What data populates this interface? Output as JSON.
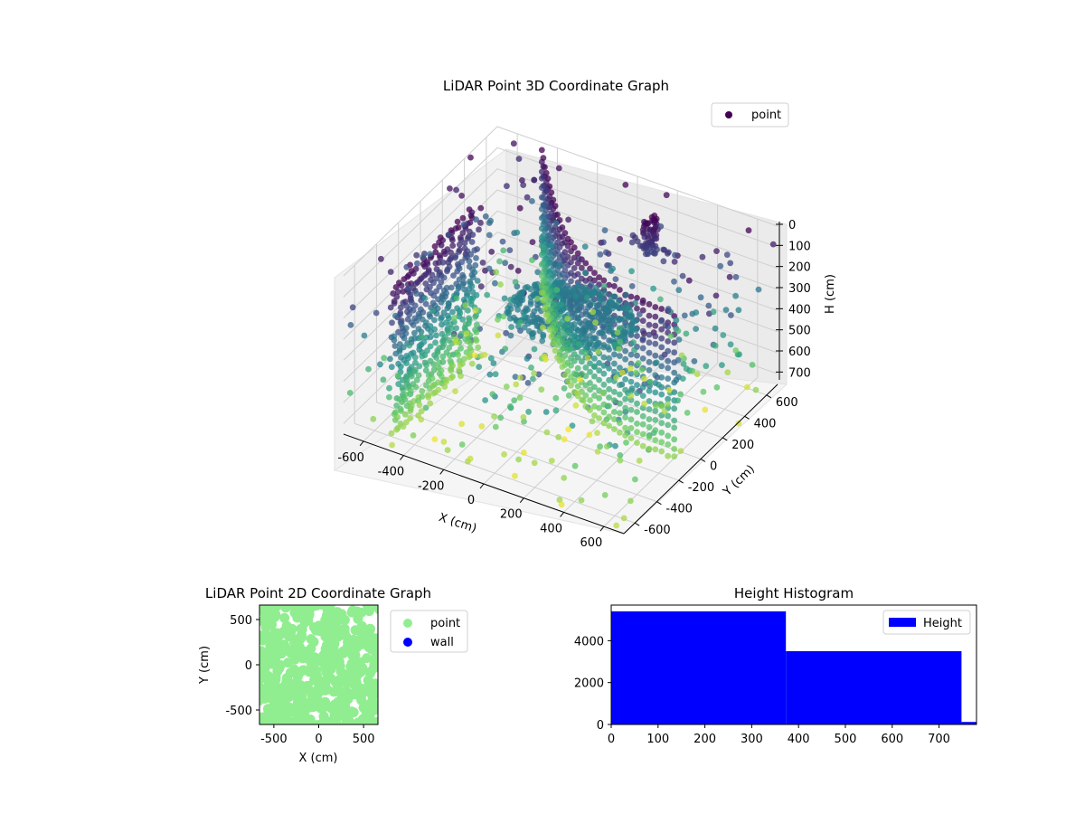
{
  "figure": {
    "background": "#ffffff"
  },
  "chart_data": [
    {
      "type": "scatter",
      "projection": "3d",
      "title": "LiDAR Point 3D Coordinate Graph",
      "xlabel": "X (cm)",
      "ylabel": "Y (cm)",
      "zlabel": "H (cm)",
      "xlim": [
        -700,
        700
      ],
      "ylim": [
        -700,
        700
      ],
      "zlim": [
        0,
        750
      ],
      "z_axis_inverted": true,
      "xticks": [
        "-600",
        "-400",
        "-200",
        "0",
        "200",
        "400",
        "600"
      ],
      "yticks": [
        "-600",
        "-400",
        "-200",
        "0",
        "200",
        "400",
        "600"
      ],
      "zticks": [
        "0",
        "100",
        "200",
        "300",
        "400",
        "500",
        "600",
        "700"
      ],
      "colormap": "viridis",
      "colormap_stops": [
        "#440154",
        "#3b528b",
        "#21918c",
        "#5ec962",
        "#fde725"
      ],
      "grid": true,
      "legend": {
        "position": "top-right",
        "entries": [
          "point"
        ],
        "marker_color": "#440154"
      },
      "series": [
        {
          "name": "point",
          "structures": [
            {
              "kind": "wall-arc",
              "x": [
                -450,
                650
              ],
              "y": [
                650,
                -150
              ],
              "h": [
                0,
                700
              ]
            },
            {
              "kind": "inner-wall",
              "x": [
                -500,
                -450
              ],
              "y": [
                -650,
                100
              ],
              "h": [
                0,
                700
              ]
            },
            {
              "kind": "dome",
              "center": [
                0,
                100
              ],
              "radius": 250,
              "h": 350
            },
            {
              "kind": "mast",
              "center": [
                200,
                450
              ],
              "h": [
                0,
                180
              ]
            },
            {
              "kind": "scatter-noise",
              "x": [
                -700,
                700
              ],
              "y": [
                -700,
                700
              ],
              "h": [
                0,
                800
              ]
            }
          ]
        }
      ]
    },
    {
      "type": "scatter",
      "title": "LiDAR Point 2D Coordinate Graph",
      "xlabel": "X (cm)",
      "ylabel": "Y (cm)",
      "xlim": [
        -660,
        660
      ],
      "ylim": [
        -660,
        660
      ],
      "xticks": [
        "-500",
        "0",
        "500"
      ],
      "yticks": [
        "-500",
        "0",
        "500"
      ],
      "legend": {
        "position": "outside-right",
        "entries": [
          {
            "label": "point",
            "color": "#90ee90"
          },
          {
            "label": "wall",
            "color": "#0000ff"
          }
        ]
      },
      "series": [
        {
          "name": "point",
          "color": "#90ee90",
          "coverage": "dense cloud filling the plot area"
        },
        {
          "name": "wall",
          "color": "#0000ff",
          "values": []
        }
      ]
    },
    {
      "type": "bar",
      "title": "Height Histogram",
      "xlabel": "",
      "ylabel": "",
      "xlim": [
        0,
        780
      ],
      "ylim": [
        0,
        5700
      ],
      "xticks": [
        "0",
        "100",
        "200",
        "300",
        "400",
        "500",
        "600",
        "700"
      ],
      "yticks": [
        "0",
        "2000",
        "4000"
      ],
      "bar_color": "#0000ff",
      "legend": {
        "position": "top-right",
        "entries": [
          "Height"
        ]
      },
      "bins": [
        {
          "x0": 0,
          "x1": 373,
          "count": 5400
        },
        {
          "x0": 373,
          "x1": 748,
          "count": 3500
        },
        {
          "x0": 748,
          "x1": 780,
          "count": 120
        }
      ]
    }
  ]
}
